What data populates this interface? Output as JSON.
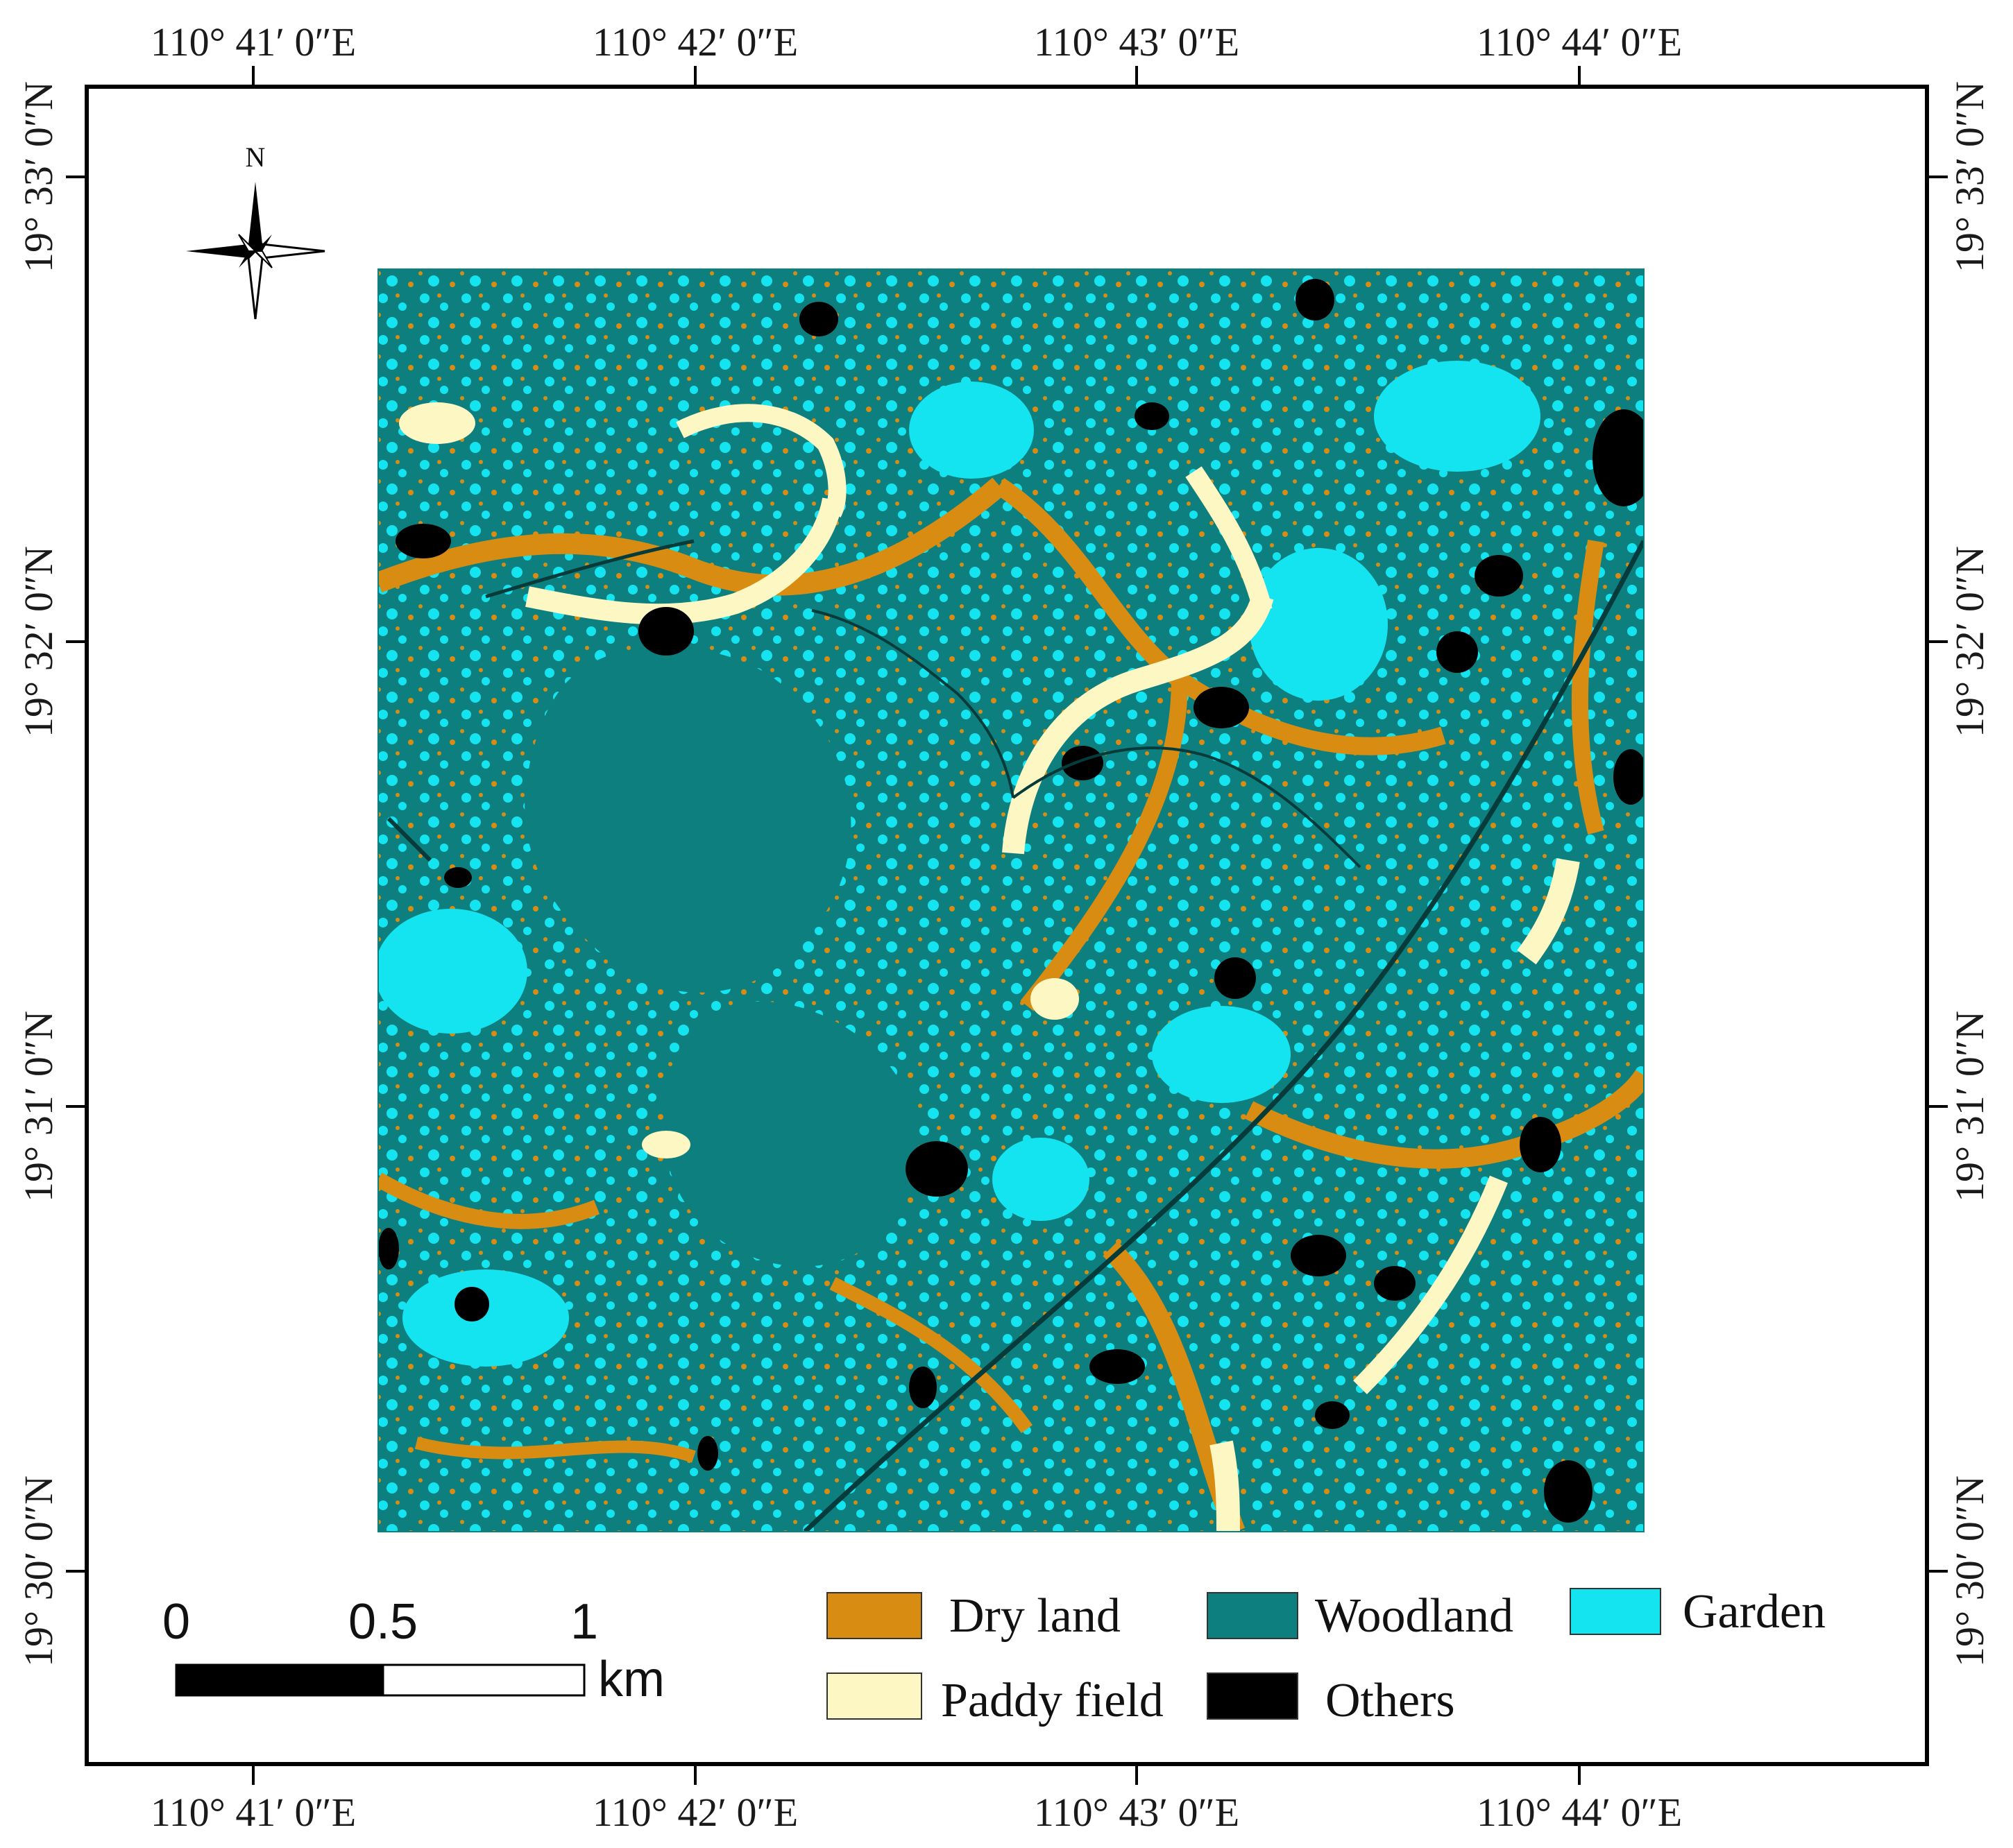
{
  "map": {
    "north_label": "N",
    "graticule": {
      "longitudes": [
        "110°  41′ 0″E",
        "110°  42′ 0″E",
        "110°  43′ 0″E",
        "110°  44′ 0″E"
      ],
      "latitudes": [
        "19°  33′ 0″N",
        "19°  32′ 0″N",
        "19°  31′ 0″N",
        "19°  30′ 0″N"
      ]
    },
    "scale_bar": {
      "labels": [
        "0",
        "0.5",
        "1"
      ],
      "unit": "km"
    },
    "legend": [
      {
        "label": "Dry land",
        "color": "#d98c12"
      },
      {
        "label": "Woodland",
        "color": "#0e7f7f"
      },
      {
        "label": "Garden",
        "color": "#14e4ef"
      },
      {
        "label": "Paddy field",
        "color": "#fdf7c3"
      },
      {
        "label": "Others",
        "color": "#000000"
      }
    ]
  }
}
